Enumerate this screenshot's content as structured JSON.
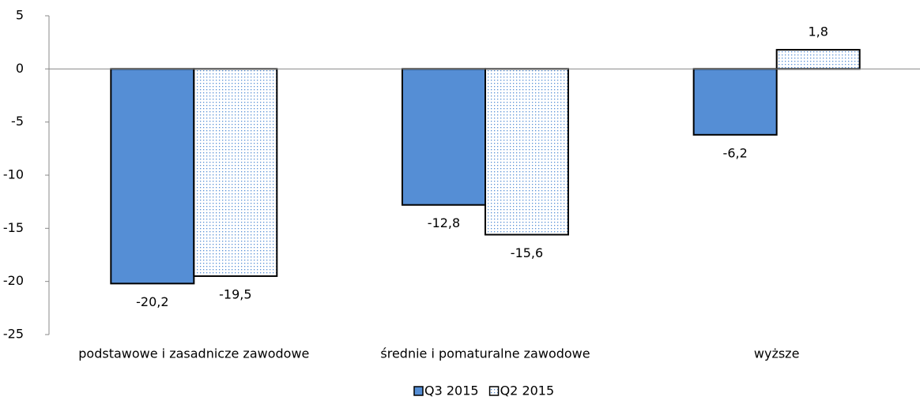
{
  "chart_data": {
    "type": "bar",
    "categories": [
      "podstawowe i zasadnicze zawodowe",
      "średnie i pomaturalne zawodowe",
      "wyższe"
    ],
    "series": [
      {
        "name": "Q3 2015",
        "color": "#558ed5",
        "fill_pattern": "solid",
        "values": [
          -20.2,
          -12.8,
          -6.2
        ],
        "value_labels": [
          "-20,2",
          "-12,8",
          "-6,2"
        ]
      },
      {
        "name": "Q2 2015",
        "color": "#558ed5",
        "fill_pattern": "dots",
        "values": [
          -19.5,
          -15.6,
          1.8
        ],
        "value_labels": [
          "-19,5",
          "-15,6",
          "1,8"
        ]
      }
    ],
    "ylim": [
      -25,
      5
    ],
    "yticks": [
      5,
      0,
      -5,
      -10,
      -15,
      -20,
      -25
    ],
    "legend": "bottom"
  }
}
